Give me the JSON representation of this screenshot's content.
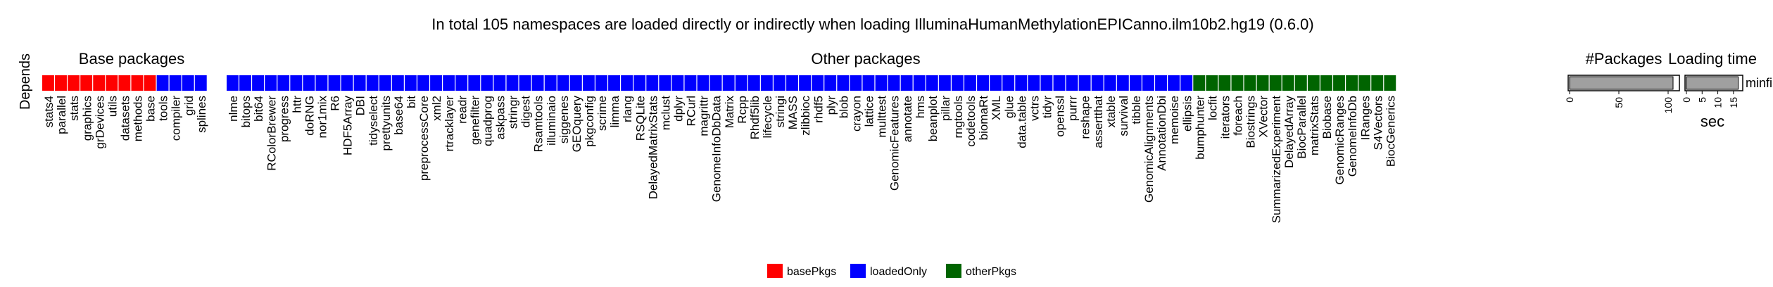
{
  "title": "In total 105 namespaces are loaded directly or indirectly when loading IlluminaHumanMethylationEPICanno.ilm10b2.hg19 (0.6.0)",
  "row_label": "Depends",
  "section_labels": {
    "base": "Base packages",
    "other": "Other packages",
    "npkg": "#Packages",
    "loading": "Loading time"
  },
  "colors": {
    "basePkgs": "#FF0000",
    "loadedOnly": "#0000FF",
    "otherPkgs": "#006400"
  },
  "chart_data": {
    "type": "heatmap",
    "title": "In total 105 namespaces are loaded directly or indirectly when loading IlluminaHumanMethylationEPICanno.ilm10b2.hg19 (0.6.0)",
    "rows": [
      "Depends"
    ],
    "legend": {
      "placement": "bottom",
      "entries": [
        {
          "key": "basePkgs",
          "label": "basePkgs"
        },
        {
          "key": "loadedOnly",
          "label": "loadedOnly"
        },
        {
          "key": "otherPkgs",
          "label": "otherPkgs"
        }
      ]
    },
    "base_packages": [
      {
        "name": "stats4",
        "type": "basePkgs"
      },
      {
        "name": "parallel",
        "type": "basePkgs"
      },
      {
        "name": "stats",
        "type": "basePkgs"
      },
      {
        "name": "graphics",
        "type": "basePkgs"
      },
      {
        "name": "grDevices",
        "type": "basePkgs"
      },
      {
        "name": "utils",
        "type": "basePkgs"
      },
      {
        "name": "datasets",
        "type": "basePkgs"
      },
      {
        "name": "methods",
        "type": "basePkgs"
      },
      {
        "name": "base",
        "type": "basePkgs"
      },
      {
        "name": "tools",
        "type": "loadedOnly"
      },
      {
        "name": "compiler",
        "type": "loadedOnly"
      },
      {
        "name": "grid",
        "type": "loadedOnly"
      },
      {
        "name": "splines",
        "type": "loadedOnly"
      }
    ],
    "other_packages": [
      {
        "name": "nlme",
        "type": "loadedOnly"
      },
      {
        "name": "bitops",
        "type": "loadedOnly"
      },
      {
        "name": "bit64",
        "type": "loadedOnly"
      },
      {
        "name": "RColorBrewer",
        "type": "loadedOnly"
      },
      {
        "name": "progress",
        "type": "loadedOnly"
      },
      {
        "name": "httr",
        "type": "loadedOnly"
      },
      {
        "name": "doRNG",
        "type": "loadedOnly"
      },
      {
        "name": "nor1mix",
        "type": "loadedOnly"
      },
      {
        "name": "R6",
        "type": "loadedOnly"
      },
      {
        "name": "HDF5Array",
        "type": "loadedOnly"
      },
      {
        "name": "DBI",
        "type": "loadedOnly"
      },
      {
        "name": "tidyselect",
        "type": "loadedOnly"
      },
      {
        "name": "prettyunits",
        "type": "loadedOnly"
      },
      {
        "name": "base64",
        "type": "loadedOnly"
      },
      {
        "name": "bit",
        "type": "loadedOnly"
      },
      {
        "name": "preprocessCore",
        "type": "loadedOnly"
      },
      {
        "name": "xml2",
        "type": "loadedOnly"
      },
      {
        "name": "rtracklayer",
        "type": "loadedOnly"
      },
      {
        "name": "readr",
        "type": "loadedOnly"
      },
      {
        "name": "genefilter",
        "type": "loadedOnly"
      },
      {
        "name": "quadprog",
        "type": "loadedOnly"
      },
      {
        "name": "askpass",
        "type": "loadedOnly"
      },
      {
        "name": "stringr",
        "type": "loadedOnly"
      },
      {
        "name": "digest",
        "type": "loadedOnly"
      },
      {
        "name": "Rsamtools",
        "type": "loadedOnly"
      },
      {
        "name": "illuminaio",
        "type": "loadedOnly"
      },
      {
        "name": "siggenes",
        "type": "loadedOnly"
      },
      {
        "name": "GEOquery",
        "type": "loadedOnly"
      },
      {
        "name": "pkgconfig",
        "type": "loadedOnly"
      },
      {
        "name": "scrime",
        "type": "loadedOnly"
      },
      {
        "name": "limma",
        "type": "loadedOnly"
      },
      {
        "name": "rlang",
        "type": "loadedOnly"
      },
      {
        "name": "RSQLite",
        "type": "loadedOnly"
      },
      {
        "name": "DelayedMatrixStats",
        "type": "loadedOnly"
      },
      {
        "name": "mclust",
        "type": "loadedOnly"
      },
      {
        "name": "dplyr",
        "type": "loadedOnly"
      },
      {
        "name": "RCurl",
        "type": "loadedOnly"
      },
      {
        "name": "magrittr",
        "type": "loadedOnly"
      },
      {
        "name": "GenomeInfoDbData",
        "type": "loadedOnly"
      },
      {
        "name": "Matrix",
        "type": "loadedOnly"
      },
      {
        "name": "Rcpp",
        "type": "loadedOnly"
      },
      {
        "name": "Rhdf5lib",
        "type": "loadedOnly"
      },
      {
        "name": "lifecycle",
        "type": "loadedOnly"
      },
      {
        "name": "stringi",
        "type": "loadedOnly"
      },
      {
        "name": "MASS",
        "type": "loadedOnly"
      },
      {
        "name": "zlibbioc",
        "type": "loadedOnly"
      },
      {
        "name": "rhdf5",
        "type": "loadedOnly"
      },
      {
        "name": "plyr",
        "type": "loadedOnly"
      },
      {
        "name": "blob",
        "type": "loadedOnly"
      },
      {
        "name": "crayon",
        "type": "loadedOnly"
      },
      {
        "name": "lattice",
        "type": "loadedOnly"
      },
      {
        "name": "multtest",
        "type": "loadedOnly"
      },
      {
        "name": "GenomicFeatures",
        "type": "loadedOnly"
      },
      {
        "name": "annotate",
        "type": "loadedOnly"
      },
      {
        "name": "hms",
        "type": "loadedOnly"
      },
      {
        "name": "beanplot",
        "type": "loadedOnly"
      },
      {
        "name": "pillar",
        "type": "loadedOnly"
      },
      {
        "name": "rngtools",
        "type": "loadedOnly"
      },
      {
        "name": "codetools",
        "type": "loadedOnly"
      },
      {
        "name": "biomaRt",
        "type": "loadedOnly"
      },
      {
        "name": "XML",
        "type": "loadedOnly"
      },
      {
        "name": "glue",
        "type": "loadedOnly"
      },
      {
        "name": "data.table",
        "type": "loadedOnly"
      },
      {
        "name": "vctrs",
        "type": "loadedOnly"
      },
      {
        "name": "tidyr",
        "type": "loadedOnly"
      },
      {
        "name": "openssl",
        "type": "loadedOnly"
      },
      {
        "name": "purrr",
        "type": "loadedOnly"
      },
      {
        "name": "reshape",
        "type": "loadedOnly"
      },
      {
        "name": "assertthat",
        "type": "loadedOnly"
      },
      {
        "name": "xtable",
        "type": "loadedOnly"
      },
      {
        "name": "survival",
        "type": "loadedOnly"
      },
      {
        "name": "tibble",
        "type": "loadedOnly"
      },
      {
        "name": "GenomicAlignments",
        "type": "loadedOnly"
      },
      {
        "name": "AnnotationDbi",
        "type": "loadedOnly"
      },
      {
        "name": "memoise",
        "type": "loadedOnly"
      },
      {
        "name": "ellipsis",
        "type": "loadedOnly"
      },
      {
        "name": "bumphunter",
        "type": "otherPkgs"
      },
      {
        "name": "locfit",
        "type": "otherPkgs"
      },
      {
        "name": "iterators",
        "type": "otherPkgs"
      },
      {
        "name": "foreach",
        "type": "otherPkgs"
      },
      {
        "name": "Biostrings",
        "type": "otherPkgs"
      },
      {
        "name": "XVector",
        "type": "otherPkgs"
      },
      {
        "name": "SummarizedExperiment",
        "type": "otherPkgs"
      },
      {
        "name": "DelayedArray",
        "type": "otherPkgs"
      },
      {
        "name": "BiocParallel",
        "type": "otherPkgs"
      },
      {
        "name": "matrixStats",
        "type": "otherPkgs"
      },
      {
        "name": "Biobase",
        "type": "otherPkgs"
      },
      {
        "name": "GenomicRanges",
        "type": "otherPkgs"
      },
      {
        "name": "GenomeInfoDb",
        "type": "otherPkgs"
      },
      {
        "name": "IRanges",
        "type": "otherPkgs"
      },
      {
        "name": "S4Vectors",
        "type": "otherPkgs"
      },
      {
        "name": "BiocGenerics",
        "type": "otherPkgs"
      }
    ],
    "bar_row_label": "minfi",
    "npkg_bar": {
      "value": 105,
      "xlim": [
        0,
        110
      ],
      "ticks": [
        0,
        50,
        100
      ]
    },
    "loading_bar": {
      "value": 16.5,
      "xlim": [
        0,
        17.5
      ],
      "ticks": [
        0,
        5,
        10,
        15
      ],
      "xlabel": "sec"
    }
  }
}
